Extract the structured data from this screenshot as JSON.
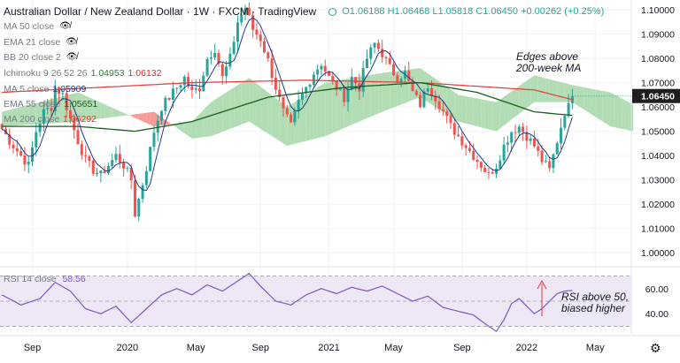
{
  "header": {
    "symbol": "Australian Dollar / New Zealand Dollar · 1W · FXCM · TradingView",
    "ohlc": "O1.06188 H1.06468 L1.05818 C1.06450 +0.00262 (+0.25%)"
  },
  "legend": [
    {
      "label": "MA 50 close",
      "value": "",
      "hidden": true,
      "color": "#787b86"
    },
    {
      "label": "EMA 21 close",
      "value": "",
      "hidden": true,
      "color": "#787b86"
    },
    {
      "label": "BB 20 close 2",
      "value": "",
      "hidden": true,
      "color": "#787b86"
    },
    {
      "label": "Ichimoku 9 26 52 26",
      "value": "1.04953",
      "value2": "1.06132",
      "color": "#2e7d32",
      "color2": "#d32f2f"
    },
    {
      "label": "MA 5 close",
      "value": "1.05909",
      "color": "#1e3a8a"
    },
    {
      "label": "EMA 55 close",
      "value": "1.05651",
      "color": "#1b5e20"
    },
    {
      "label": "MA 200 close",
      "value": "1.06292",
      "color": "#e53935"
    }
  ],
  "rsi": {
    "label": "RSI 14 close",
    "value": "58.56",
    "ticks": [
      "60.00",
      "40.00"
    ]
  },
  "annotations": {
    "top": [
      "Edges above",
      "200-week MA"
    ],
    "rsi": [
      "RSI above 50,",
      "biased higher"
    ]
  },
  "icons": {
    "hidden": "eye-off-icon",
    "settings": "gear-icon"
  },
  "colors": {
    "up": "#26a69a",
    "down": "#ef5350",
    "last_price_bg": "#1f1f1f",
    "kumo_bull": "#a5d6a7",
    "kumo_bear": "#f28b82",
    "rsi": "#7e57c2",
    "rsi_band": "#ede7f6"
  },
  "chart_data": {
    "type": "candlestick",
    "timeframe": "1W",
    "y_ticks": [
      "1.10000",
      "1.09000",
      "1.08000",
      "1.07000",
      "1.06000",
      "1.05000",
      "1.04000",
      "1.03000",
      "1.02000",
      "1.01000",
      "1.00000"
    ],
    "ylim": [
      0.995,
      1.104
    ],
    "x_ticks": [
      "Sep",
      "2020",
      "May",
      "Sep",
      "2021",
      "May",
      "Sep",
      "2022",
      "May"
    ],
    "last_price": "1.06450",
    "anchors": [
      [
        0,
        1.051
      ],
      [
        2,
        1.046
      ],
      [
        5,
        1.04
      ],
      [
        7,
        1.036
      ],
      [
        9,
        1.05
      ],
      [
        11,
        1.058
      ],
      [
        13,
        1.06
      ],
      [
        14,
        1.068
      ],
      [
        16,
        1.065
      ],
      [
        18,
        1.055
      ],
      [
        20,
        1.046
      ],
      [
        22,
        1.038
      ],
      [
        24,
        1.034
      ],
      [
        26,
        1.032
      ],
      [
        28,
        1.036
      ],
      [
        30,
        1.04
      ],
      [
        32,
        1.036
      ],
      [
        34,
        1.03
      ],
      [
        35,
        1.016
      ],
      [
        36,
        1.022
      ],
      [
        38,
        1.035
      ],
      [
        40,
        1.05
      ],
      [
        42,
        1.06
      ],
      [
        44,
        1.064
      ],
      [
        46,
        1.068
      ],
      [
        48,
        1.072
      ],
      [
        50,
        1.066
      ],
      [
        52,
        1.068
      ],
      [
        54,
        1.08
      ],
      [
        56,
        1.084
      ],
      [
        58,
        1.072
      ],
      [
        60,
        1.08
      ],
      [
        62,
        1.095
      ],
      [
        64,
        1.101
      ],
      [
        66,
        1.092
      ],
      [
        68,
        1.088
      ],
      [
        70,
        1.079
      ],
      [
        72,
        1.068
      ],
      [
        74,
        1.058
      ],
      [
        76,
        1.052
      ],
      [
        78,
        1.062
      ],
      [
        80,
        1.068
      ],
      [
        82,
        1.074
      ],
      [
        84,
        1.078
      ],
      [
        86,
        1.072
      ],
      [
        88,
        1.068
      ],
      [
        90,
        1.064
      ],
      [
        92,
        1.072
      ],
      [
        94,
        1.068
      ],
      [
        96,
        1.08
      ],
      [
        98,
        1.086
      ],
      [
        100,
        1.082
      ],
      [
        102,
        1.076
      ],
      [
        104,
        1.072
      ],
      [
        106,
        1.074
      ],
      [
        108,
        1.066
      ],
      [
        110,
        1.061
      ],
      [
        112,
        1.069
      ],
      [
        114,
        1.064
      ],
      [
        116,
        1.058
      ],
      [
        118,
        1.052
      ],
      [
        120,
        1.048
      ],
      [
        122,
        1.044
      ],
      [
        124,
        1.04
      ],
      [
        126,
        1.036
      ],
      [
        128,
        1.032
      ],
      [
        130,
        1.036
      ],
      [
        132,
        1.044
      ],
      [
        134,
        1.05
      ],
      [
        136,
        1.052
      ],
      [
        138,
        1.048
      ],
      [
        140,
        1.044
      ],
      [
        142,
        1.038
      ],
      [
        144,
        1.034
      ],
      [
        146,
        1.046
      ],
      [
        148,
        1.058
      ],
      [
        149,
        1.06
      ],
      [
        150,
        1.0645
      ]
    ],
    "ma200": [
      [
        0,
        1.066
      ],
      [
        50,
        1.07
      ],
      [
        80,
        1.071
      ],
      [
        110,
        1.07
      ],
      [
        140,
        1.067
      ],
      [
        150,
        1.063
      ]
    ],
    "ema55": [
      [
        0,
        1.052
      ],
      [
        20,
        1.052
      ],
      [
        35,
        1.05
      ],
      [
        50,
        1.054
      ],
      [
        70,
        1.064
      ],
      [
        90,
        1.068
      ],
      [
        110,
        1.07
      ],
      [
        125,
        1.066
      ],
      [
        140,
        1.058
      ],
      [
        150,
        1.0565
      ]
    ],
    "kumo": [
      [
        0,
        1.058,
        1.052
      ],
      [
        20,
        1.066,
        1.054
      ],
      [
        40,
        1.052,
        1.058
      ],
      [
        50,
        1.054,
        1.047
      ],
      [
        55,
        1.062,
        1.048
      ],
      [
        65,
        1.072,
        1.054
      ],
      [
        75,
        1.06,
        1.044
      ],
      [
        85,
        1.07,
        1.048
      ],
      [
        100,
        1.074,
        1.058
      ],
      [
        110,
        1.076,
        1.064
      ],
      [
        120,
        1.065,
        1.054
      ],
      [
        130,
        1.062,
        1.05
      ],
      [
        140,
        1.073,
        1.062
      ],
      [
        150,
        1.069,
        1.062
      ],
      [
        160,
        1.066,
        1.052
      ],
      [
        166,
        1.061,
        1.05
      ]
    ],
    "rsi_series": [
      [
        0,
        55
      ],
      [
        5,
        47
      ],
      [
        10,
        52
      ],
      [
        14,
        65
      ],
      [
        18,
        58
      ],
      [
        22,
        44
      ],
      [
        26,
        40
      ],
      [
        30,
        46
      ],
      [
        34,
        33
      ],
      [
        38,
        44
      ],
      [
        42,
        55
      ],
      [
        46,
        60
      ],
      [
        50,
        55
      ],
      [
        54,
        63
      ],
      [
        58,
        58
      ],
      [
        62,
        66
      ],
      [
        65,
        72
      ],
      [
        68,
        62
      ],
      [
        72,
        50
      ],
      [
        76,
        47
      ],
      [
        80,
        55
      ],
      [
        84,
        60
      ],
      [
        88,
        56
      ],
      [
        92,
        61
      ],
      [
        96,
        58
      ],
      [
        100,
        62
      ],
      [
        104,
        56
      ],
      [
        108,
        50
      ],
      [
        112,
        54
      ],
      [
        116,
        45
      ],
      [
        120,
        42
      ],
      [
        124,
        39
      ],
      [
        128,
        30
      ],
      [
        130,
        26
      ],
      [
        132,
        35
      ],
      [
        134,
        48
      ],
      [
        136,
        52
      ],
      [
        138,
        46
      ],
      [
        140,
        40
      ],
      [
        142,
        44
      ],
      [
        144,
        50
      ],
      [
        146,
        56
      ],
      [
        148,
        58
      ],
      [
        150,
        58.56
      ]
    ],
    "rsi_ylim": [
      24,
      76
    ]
  }
}
